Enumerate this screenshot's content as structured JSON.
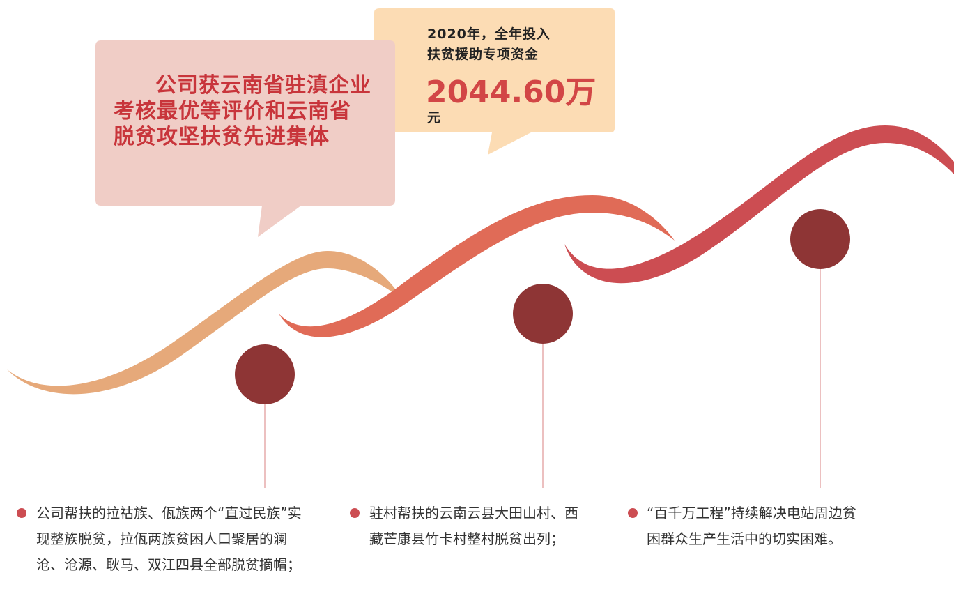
{
  "callouts": {
    "honor": {
      "text": "公司获云南省驻滇企业考核最优等评价和云南省脱贫攻坚扶贫先进集体"
    },
    "funding": {
      "line1": "2020年，全年投入",
      "line2": "扶贫援助专项资金",
      "amount": "2044.60万",
      "unit": "元"
    }
  },
  "items": [
    {
      "text": "公司帮扶的拉祜族、佤族两个“直过民族”实现整族脱贫，拉佤两族贫困人口聚居的澜沧、沧源、耿马、双江四县全部脱贫摘帽；"
    },
    {
      "text": "驻村帮扶的云南云县大田山村、西藏芒康县竹卡村整村脱贫出列；"
    },
    {
      "text": "“百千万工程”持续解决电站周边贫困群众生产生活中的切实困难。"
    }
  ]
}
